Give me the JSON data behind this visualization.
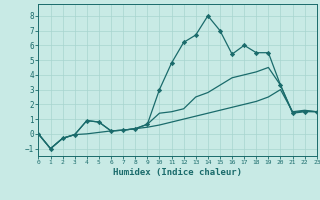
{
  "xlabel": "Humidex (Indice chaleur)",
  "background_color": "#c8eae5",
  "grid_color": "#a8d5cf",
  "line_color": "#1a6b6b",
  "xlim": [
    0,
    23
  ],
  "ylim": [
    -1.5,
    8.8
  ],
  "yticks": [
    -1,
    0,
    1,
    2,
    3,
    4,
    5,
    6,
    7,
    8
  ],
  "xticks": [
    0,
    1,
    2,
    3,
    4,
    5,
    6,
    7,
    8,
    9,
    10,
    11,
    12,
    13,
    14,
    15,
    16,
    17,
    18,
    19,
    20,
    21,
    22,
    23
  ],
  "series": [
    {
      "x": [
        0,
        1,
        2,
        3,
        4,
        5,
        6,
        7,
        8,
        9,
        10,
        11,
        12,
        13,
        14,
        15,
        16,
        17,
        18,
        19,
        20,
        21,
        22,
        23
      ],
      "y": [
        0,
        -1,
        -0.3,
        -0.05,
        0.0,
        0.1,
        0.2,
        0.25,
        0.35,
        0.45,
        0.6,
        0.8,
        1.0,
        1.2,
        1.4,
        1.6,
        1.8,
        2.0,
        2.2,
        2.5,
        3.0,
        1.5,
        1.6,
        1.5
      ],
      "marker": null,
      "linestyle": "-",
      "linewidth": 0.9
    },
    {
      "x": [
        0,
        1,
        2,
        3,
        4,
        5,
        6,
        7,
        8,
        9,
        10,
        11,
        12,
        13,
        14,
        15,
        16,
        17,
        18,
        19,
        20,
        21,
        22,
        23
      ],
      "y": [
        0,
        -1,
        -0.3,
        -0.05,
        0.9,
        0.8,
        0.2,
        0.25,
        0.35,
        0.65,
        1.4,
        1.5,
        1.7,
        2.5,
        2.8,
        3.3,
        3.8,
        4.0,
        4.2,
        4.5,
        3.3,
        1.45,
        1.55,
        1.5
      ],
      "marker": null,
      "linestyle": "-",
      "linewidth": 0.9
    },
    {
      "x": [
        0,
        1,
        2,
        3,
        4,
        5,
        6,
        7,
        8,
        9,
        10,
        11,
        12,
        13,
        14,
        15,
        16,
        17,
        18,
        19,
        20,
        21,
        22,
        23
      ],
      "y": [
        0,
        -1,
        -0.3,
        -0.05,
        0.9,
        0.8,
        0.2,
        0.25,
        0.35,
        0.65,
        3.0,
        4.8,
        6.2,
        6.7,
        8.0,
        7.0,
        5.4,
        6.0,
        5.5,
        5.5,
        3.3,
        1.4,
        1.5,
        1.5
      ],
      "marker": "D",
      "markersize": 2.2,
      "linestyle": "-",
      "linewidth": 0.9
    }
  ]
}
